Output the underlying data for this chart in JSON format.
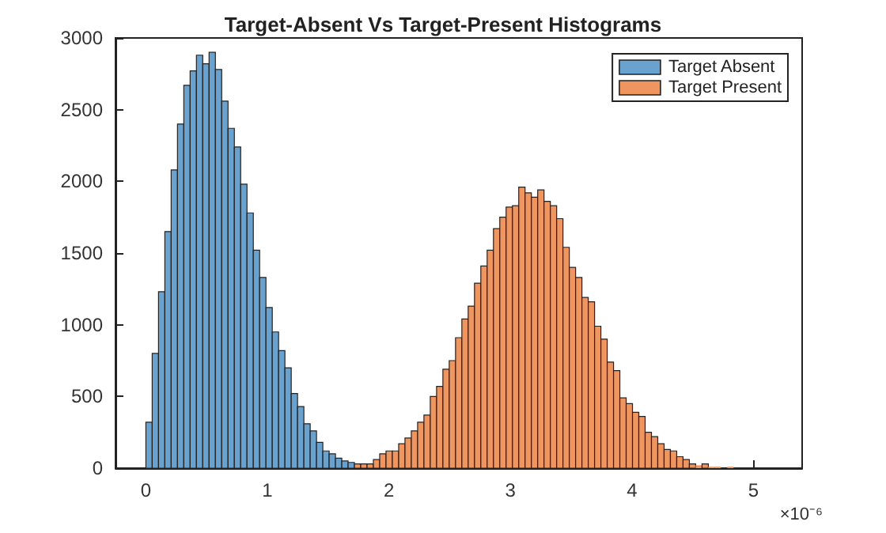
{
  "chart_data": {
    "type": "histogram",
    "title": "Target-Absent Vs Target-Present Histograms",
    "annotations": [
      "×10⁻⁶"
    ],
    "bins": [
      0,
      0.052,
      0.104,
      0.156,
      0.208,
      0.26,
      0.312,
      0.364,
      0.416,
      0.468,
      0.52,
      0.572,
      0.624,
      0.676,
      0.728,
      0.78,
      0.832,
      0.884,
      0.936,
      0.988,
      1.04,
      1.092,
      1.144,
      1.196,
      1.248,
      1.3,
      1.352,
      1.404,
      1.456,
      1.508,
      1.56,
      1.612,
      1.664,
      1.716,
      1.768,
      1.82,
      1.872,
      1.924,
      1.976,
      2.028,
      2.08,
      2.132,
      2.184,
      2.236,
      2.288,
      2.34,
      2.392,
      2.444,
      2.496,
      2.548,
      2.6,
      2.652,
      2.704,
      2.756,
      2.808,
      2.86,
      2.912,
      2.964,
      3.016,
      3.068,
      3.12,
      3.172,
      3.224,
      3.276,
      3.328,
      3.38,
      3.432,
      3.484,
      3.536,
      3.588,
      3.64,
      3.692,
      3.744,
      3.796,
      3.848,
      3.9,
      3.952,
      4.004,
      4.056,
      4.108,
      4.16,
      4.212,
      4.264,
      4.316,
      4.368,
      4.42,
      4.472,
      4.524,
      4.576,
      4.628,
      4.68,
      4.732,
      4.784,
      4.836
    ],
    "series": [
      {
        "name": "Target Absent",
        "color": "#6aa2cf",
        "values": [
          320,
          800,
          1230,
          1650,
          2080,
          2400,
          2670,
          2770,
          2880,
          2820,
          2900,
          2780,
          2560,
          2370,
          2240,
          1980,
          1780,
          1520,
          1330,
          1120,
          950,
          820,
          700,
          520,
          430,
          310,
          260,
          180,
          120,
          100,
          70,
          50,
          40,
          null,
          null,
          null,
          null,
          null,
          null,
          null,
          null,
          null,
          null,
          null,
          null,
          null,
          null,
          null,
          null,
          null,
          null,
          null,
          null,
          null,
          null,
          null,
          null,
          null,
          null,
          null,
          null,
          null,
          null,
          null,
          null,
          null,
          null,
          null,
          null,
          null,
          null,
          null,
          null,
          null,
          null,
          null,
          null,
          null,
          null,
          null,
          null,
          null,
          null,
          null,
          null,
          null,
          null,
          null,
          null,
          null,
          null,
          null,
          null
        ]
      },
      {
        "name": "Target Present",
        "color": "#ef9560",
        "values": [
          null,
          null,
          null,
          null,
          null,
          null,
          null,
          null,
          null,
          null,
          null,
          null,
          null,
          null,
          null,
          null,
          null,
          null,
          null,
          null,
          null,
          null,
          null,
          null,
          null,
          null,
          null,
          null,
          null,
          null,
          null,
          null,
          null,
          30,
          30,
          30,
          60,
          100,
          120,
          120,
          170,
          210,
          260,
          320,
          370,
          500,
          570,
          690,
          750,
          910,
          1040,
          1130,
          1290,
          1410,
          1520,
          1670,
          1750,
          1820,
          1830,
          1960,
          1920,
          1890,
          1940,
          1860,
          1830,
          1740,
          1540,
          1400,
          1330,
          1190,
          1160,
          990,
          900,
          740,
          680,
          490,
          450,
          390,
          360,
          250,
          220,
          170,
          130,
          120,
          80,
          60,
          30,
          20,
          30,
          10,
          10,
          0,
          10
        ]
      }
    ],
    "xlim": [
      -0.25,
      5.4
    ],
    "xticks": [
      0,
      1,
      2,
      3,
      4,
      5
    ],
    "ylim": [
      0,
      3000
    ],
    "yticks": [
      0,
      500,
      1000,
      1500,
      2000,
      2500,
      3000
    ],
    "grid": false,
    "legend": "top right"
  }
}
